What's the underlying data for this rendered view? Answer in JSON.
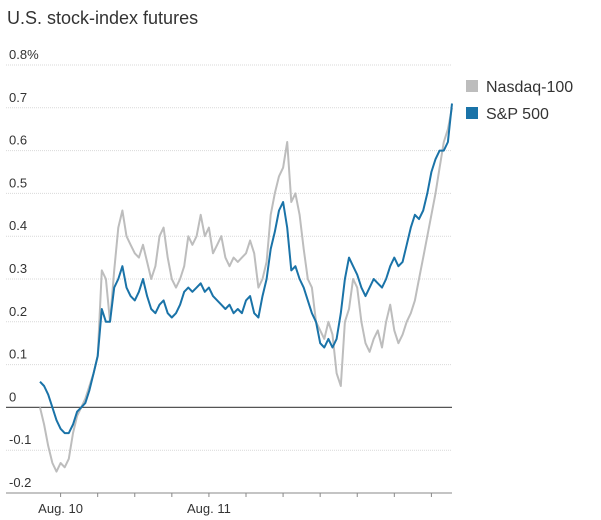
{
  "chart_data": {
    "type": "line",
    "title": "U.S. stock-index futures",
    "xlabel": "",
    "ylabel": "",
    "ylim": [
      -0.2,
      0.8
    ],
    "yticks": [
      -0.2,
      -0.1,
      0,
      0.1,
      0.2,
      0.3,
      0.4,
      0.5,
      0.6,
      0.7,
      0.8
    ],
    "ytick_labels": [
      "-0.2",
      "-0.1",
      "0",
      "0.1",
      "0.2",
      "0.3",
      "0.4",
      "0.5",
      "0.6",
      "0.7",
      "0.8%"
    ],
    "xlim": [
      0,
      100
    ],
    "x_minor_ticks": [
      5,
      14,
      23,
      32,
      41,
      50,
      59,
      68,
      77,
      86,
      95
    ],
    "x_labels": [
      {
        "x": 5,
        "label": "Aug. 10"
      },
      {
        "x": 41,
        "label": "Aug. 11"
      }
    ],
    "legend": {
      "position": "top-right"
    },
    "series": [
      {
        "name": "Nasdaq-100",
        "color": "#bdbdbd",
        "x": [
          0,
          1,
          2,
          3,
          4,
          5,
          6,
          7,
          8,
          9,
          10,
          11,
          12,
          13,
          14,
          15,
          16,
          17,
          18,
          19,
          20,
          21,
          22,
          23,
          24,
          25,
          26,
          27,
          28,
          29,
          30,
          31,
          32,
          33,
          34,
          35,
          36,
          37,
          38,
          39,
          40,
          41,
          42,
          43,
          44,
          45,
          46,
          47,
          48,
          49,
          50,
          51,
          52,
          53,
          54,
          55,
          56,
          57,
          58,
          59,
          60,
          61,
          62,
          63,
          64,
          65,
          66,
          67,
          68,
          69,
          70,
          71,
          72,
          73,
          74,
          75,
          76,
          77,
          78,
          79,
          80,
          81,
          82,
          83,
          84,
          85,
          86,
          87,
          88,
          89,
          90,
          91,
          92,
          93,
          94,
          95,
          96,
          97,
          98,
          99,
          100
        ],
        "values": [
          0.0,
          -0.04,
          -0.09,
          -0.13,
          -0.15,
          -0.13,
          -0.14,
          -0.12,
          -0.06,
          -0.02,
          0.0,
          0.02,
          0.05,
          0.08,
          0.12,
          0.32,
          0.3,
          0.2,
          0.32,
          0.42,
          0.46,
          0.4,
          0.38,
          0.36,
          0.35,
          0.38,
          0.34,
          0.3,
          0.33,
          0.4,
          0.42,
          0.35,
          0.3,
          0.28,
          0.3,
          0.33,
          0.4,
          0.38,
          0.4,
          0.45,
          0.4,
          0.42,
          0.36,
          0.38,
          0.4,
          0.35,
          0.33,
          0.35,
          0.34,
          0.35,
          0.36,
          0.39,
          0.36,
          0.28,
          0.3,
          0.34,
          0.45,
          0.5,
          0.54,
          0.56,
          0.62,
          0.48,
          0.5,
          0.45,
          0.37,
          0.3,
          0.28,
          0.2,
          0.18,
          0.16,
          0.2,
          0.17,
          0.08,
          0.05,
          0.2,
          0.23,
          0.3,
          0.28,
          0.2,
          0.15,
          0.13,
          0.16,
          0.18,
          0.14,
          0.2,
          0.24,
          0.18,
          0.15,
          0.17,
          0.2,
          0.22,
          0.25,
          0.3,
          0.35,
          0.4,
          0.45,
          0.5,
          0.56,
          0.62,
          0.65,
          0.7
        ]
      },
      {
        "name": "S&P 500",
        "color": "#1a73a8",
        "x": [
          0,
          1,
          2,
          3,
          4,
          5,
          6,
          7,
          8,
          9,
          10,
          11,
          12,
          13,
          14,
          15,
          16,
          17,
          18,
          19,
          20,
          21,
          22,
          23,
          24,
          25,
          26,
          27,
          28,
          29,
          30,
          31,
          32,
          33,
          34,
          35,
          36,
          37,
          38,
          39,
          40,
          41,
          42,
          43,
          44,
          45,
          46,
          47,
          48,
          49,
          50,
          51,
          52,
          53,
          54,
          55,
          56,
          57,
          58,
          59,
          60,
          61,
          62,
          63,
          64,
          65,
          66,
          67,
          68,
          69,
          70,
          71,
          72,
          73,
          74,
          75,
          76,
          77,
          78,
          79,
          80,
          81,
          82,
          83,
          84,
          85,
          86,
          87,
          88,
          89,
          90,
          91,
          92,
          93,
          94,
          95,
          96,
          97,
          98,
          99,
          100
        ],
        "values": [
          0.06,
          0.05,
          0.03,
          0.0,
          -0.03,
          -0.05,
          -0.06,
          -0.06,
          -0.04,
          -0.01,
          0.0,
          0.01,
          0.04,
          0.08,
          0.12,
          0.23,
          0.2,
          0.2,
          0.28,
          0.3,
          0.33,
          0.28,
          0.26,
          0.25,
          0.27,
          0.3,
          0.26,
          0.23,
          0.22,
          0.24,
          0.25,
          0.22,
          0.21,
          0.22,
          0.24,
          0.27,
          0.28,
          0.27,
          0.28,
          0.29,
          0.27,
          0.28,
          0.26,
          0.25,
          0.24,
          0.23,
          0.24,
          0.22,
          0.23,
          0.22,
          0.25,
          0.26,
          0.22,
          0.21,
          0.26,
          0.3,
          0.37,
          0.41,
          0.46,
          0.48,
          0.42,
          0.32,
          0.33,
          0.3,
          0.28,
          0.25,
          0.22,
          0.2,
          0.15,
          0.14,
          0.16,
          0.14,
          0.16,
          0.22,
          0.3,
          0.35,
          0.33,
          0.31,
          0.28,
          0.26,
          0.28,
          0.3,
          0.29,
          0.28,
          0.3,
          0.33,
          0.35,
          0.33,
          0.34,
          0.38,
          0.42,
          0.45,
          0.44,
          0.46,
          0.5,
          0.55,
          0.58,
          0.6,
          0.6,
          0.62,
          0.71
        ]
      }
    ]
  }
}
